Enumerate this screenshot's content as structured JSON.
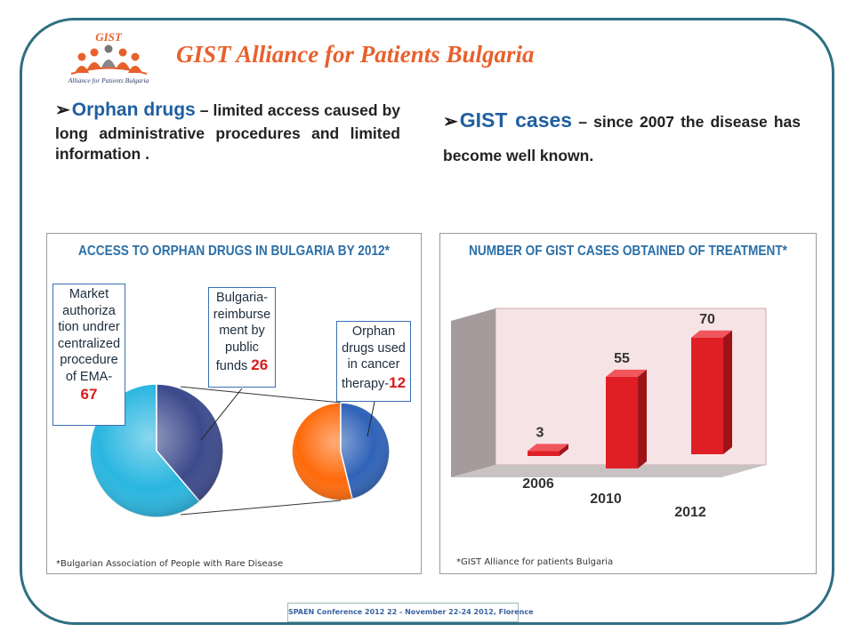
{
  "header": {
    "title": "GIST Alliance for Patients Bulgaria",
    "logo_text_top": "GIST",
    "logo_text_bottom": "Alliance for Patients Bulgaria"
  },
  "bullets": [
    {
      "lead": "Orphan drugs",
      "rest": "– limited access caused by long administrative procedures and limited information ."
    },
    {
      "lead": "GIST cases",
      "rest": "– since 2007 the disease has become well known."
    }
  ],
  "colors": {
    "title": "#e8602c",
    "frame": "#2f6f83",
    "accent_blue": "#2a6fa8",
    "pie_big_main": "#29b6e0",
    "pie_big_slice": "#3c4a8c",
    "pie_small_main": "#ff6a0a",
    "pie_small_slice": "#2f62b8",
    "bar": "#e01e26",
    "highlight_number": "#d81b1b"
  },
  "chart_data": [
    {
      "type": "pie",
      "title": "ACCESS TO ORPHAN DRUGS IN BULGARIA BY 2012*",
      "footnote": "*Bulgarian Association of People with Rare Disease",
      "callouts": [
        {
          "text": "Market authoriza tion undrer centralized procedure of EMA-",
          "value": "67"
        },
        {
          "text": "Bulgaria- reimburse ment by public funds",
          "value": "26"
        },
        {
          "text": "Orphan drugs used in cancer therapy-",
          "value": "12"
        }
      ],
      "pies": [
        {
          "total": 67,
          "highlighted": 26,
          "highlighted_label": "Bulgaria-reimbursement by public funds"
        },
        {
          "total": 26,
          "highlighted": 12,
          "highlighted_label": "Orphan drugs used in cancer therapy"
        }
      ]
    },
    {
      "type": "bar",
      "title": "NUMBER OF GIST CASES OBTAINED OF TREATMENT*",
      "footnote": "*GIST Alliance for patients Bulgaria",
      "categories": [
        "2006",
        "2010",
        "2012"
      ],
      "values": [
        3,
        55,
        70
      ],
      "ylim": [
        0,
        80
      ],
      "grid": false
    }
  ],
  "footer": {
    "conference": "SPAEN Conference 2012 22 - November 22-24 2012, Florence"
  }
}
